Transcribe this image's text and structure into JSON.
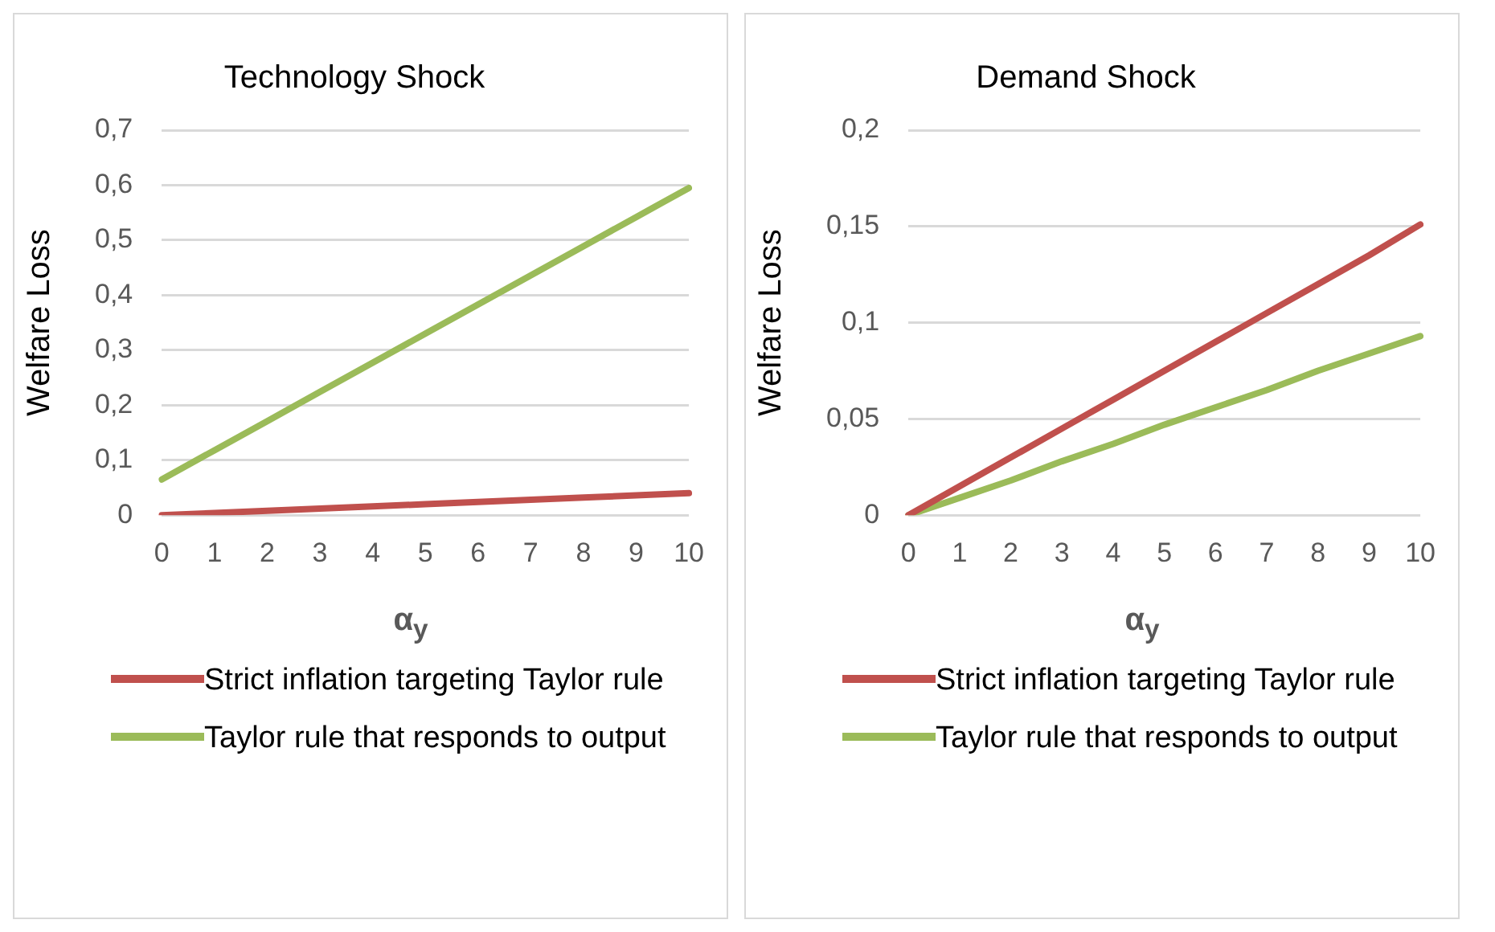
{
  "chart_data": [
    {
      "type": "line",
      "title": "Technology Shock",
      "ylabel": "Welfare Loss",
      "xlabel": "α$_{y}$",
      "categories": [
        "0",
        "1",
        "2",
        "3",
        "4",
        "5",
        "6",
        "7",
        "8",
        "9",
        "10"
      ],
      "series": [
        {
          "name": "Strict inflation targeting Taylor rule",
          "color": "#c0504d",
          "values": [
            0,
            0.004,
            0.008,
            0.012,
            0.016,
            0.02,
            0.024,
            0.028,
            0.032,
            0.036,
            0.04
          ]
        },
        {
          "name": "Taylor rule that responds to output",
          "color": "#9bbb59",
          "values": [
            0.065,
            0.118,
            0.171,
            0.224,
            0.277,
            0.33,
            0.383,
            0.436,
            0.489,
            0.542,
            0.595
          ]
        }
      ],
      "ylim": [
        0,
        0.7
      ],
      "yticks": [
        {
          "value": 0,
          "label": "0"
        },
        {
          "value": 0.1,
          "label": "0,1"
        },
        {
          "value": 0.2,
          "label": "0,2"
        },
        {
          "value": 0.3,
          "label": "0,3"
        },
        {
          "value": 0.4,
          "label": "0,4"
        },
        {
          "value": 0.5,
          "label": "0,5"
        },
        {
          "value": 0.6,
          "label": "0,6"
        },
        {
          "value": 0.7,
          "label": "0,7"
        }
      ],
      "grid": "y",
      "legend": "bottom",
      "marker": "none"
    },
    {
      "type": "line",
      "title": "Demand Shock",
      "ylabel": "Welfare Loss",
      "xlabel": "α$_{y}$",
      "categories": [
        "0",
        "1",
        "2",
        "3",
        "4",
        "5",
        "6",
        "7",
        "8",
        "9",
        "10"
      ],
      "series": [
        {
          "name": "Strict inflation targeting Taylor rule",
          "color": "#c0504d",
          "values": [
            0,
            0.015,
            0.03,
            0.045,
            0.06,
            0.075,
            0.09,
            0.105,
            0.12,
            0.135,
            0.151
          ]
        },
        {
          "name": "Taylor rule that responds to output",
          "color": "#9bbb59",
          "values": [
            0,
            0.009,
            0.018,
            0.028,
            0.037,
            0.047,
            0.056,
            0.065,
            0.075,
            0.084,
            0.093
          ]
        }
      ],
      "ylim": [
        0,
        0.2
      ],
      "yticks": [
        {
          "value": 0,
          "label": "0"
        },
        {
          "value": 0.05,
          "label": "0,05"
        },
        {
          "value": 0.1,
          "label": "0,1"
        },
        {
          "value": 0.15,
          "label": "0,15"
        },
        {
          "value": 0.2,
          "label": "0,2"
        }
      ],
      "grid": "y",
      "legend": "bottom",
      "marker": "none"
    }
  ]
}
